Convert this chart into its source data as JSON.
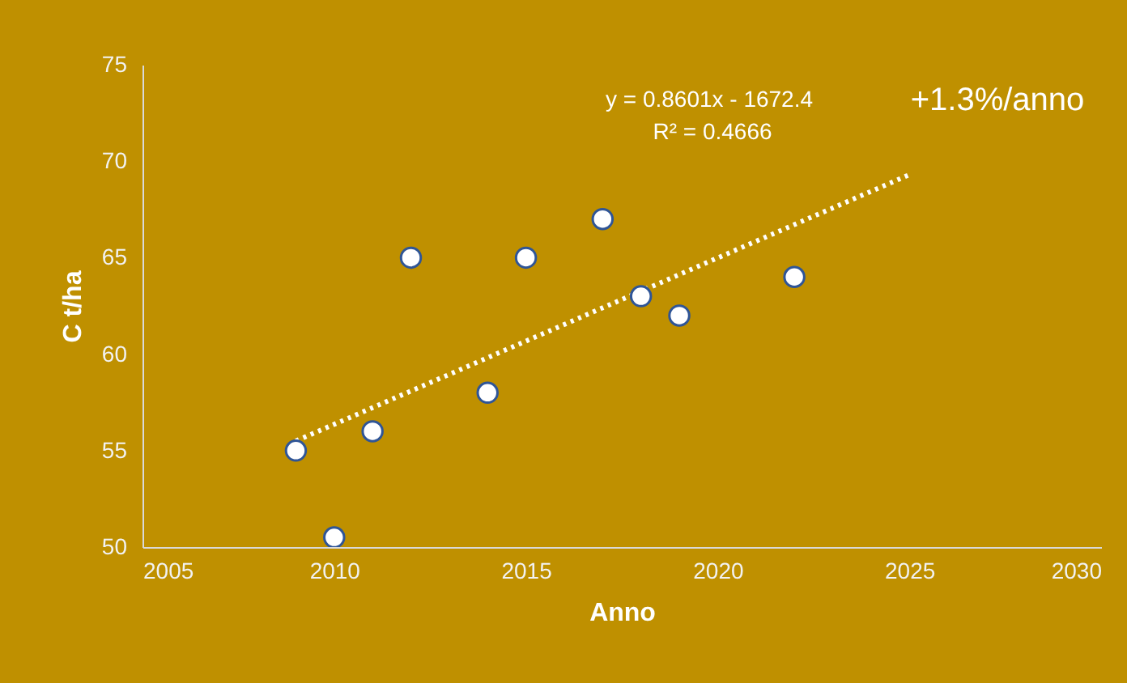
{
  "chart_data": {
    "type": "scatter",
    "xlabel": "Anno",
    "ylabel": "C t/ha",
    "xlim": [
      2005,
      2030
    ],
    "xticks": [
      2005,
      2010,
      2015,
      2020,
      2025,
      2030
    ],
    "ylim": [
      50,
      75
    ],
    "yticks": [
      50,
      55,
      60,
      65,
      70,
      75
    ],
    "series": [
      {
        "color": "#ffffff",
        "marker": "circle",
        "x": [
          2009,
          2010,
          2011,
          2012,
          2014,
          2015,
          2017,
          2018,
          2019,
          2022
        ],
        "values": [
          55,
          50.5,
          56,
          65,
          58,
          65,
          67,
          63,
          62,
          64
        ]
      },
      {
        "type": "line",
        "color": "#ffffff",
        "line_style": "dotted",
        "x": [
          2009,
          2025
        ],
        "values": [
          55.5,
          69.3
        ]
      }
    ],
    "annotations": [
      "y = 0.8601x - 1672.4",
      "R² = 0.4666",
      "+1.3%/anno"
    ]
  }
}
